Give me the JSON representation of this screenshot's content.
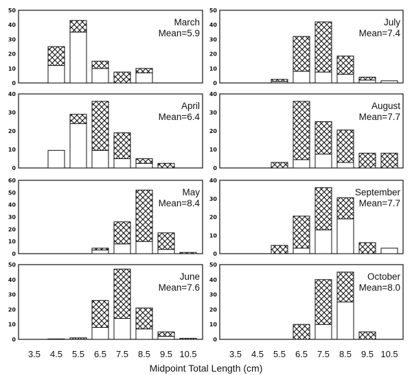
{
  "chart_data": {
    "type": "bar",
    "stacked": true,
    "xlabel": "Midpoint Total Length (cm)",
    "categories": [
      "3.5",
      "4.5",
      "5.5",
      "6.5",
      "7.5",
      "8.5",
      "9.5",
      "10.5"
    ],
    "series_styles": {
      "lower": "open",
      "upper": "cross-hatched"
    },
    "colors": {
      "outline": "#111111",
      "open": "#ffffff",
      "hatch": "#111111"
    },
    "panels": [
      {
        "month": "March",
        "mean": "Mean=5.9",
        "ylim": [
          0,
          50
        ],
        "yticks": [
          0,
          10,
          20,
          30,
          40,
          50
        ],
        "open": [
          0,
          12,
          35,
          10,
          0,
          7,
          0,
          0
        ],
        "hatched": [
          0,
          13,
          8,
          5,
          7.5,
          3,
          0,
          0
        ]
      },
      {
        "month": "April",
        "mean": "Mean=6.4",
        "ylim": [
          0,
          40
        ],
        "yticks": [
          0,
          10,
          20,
          30,
          40
        ],
        "open": [
          0,
          9.5,
          24,
          9.5,
          5,
          2.5,
          0,
          0
        ],
        "hatched": [
          0,
          0,
          5,
          26.5,
          14,
          2.5,
          2.5,
          0
        ]
      },
      {
        "month": "May",
        "mean": "Mean=8.4",
        "ylim": [
          0,
          60
        ],
        "yticks": [
          0,
          10,
          20,
          30,
          40,
          50,
          60
        ],
        "open": [
          0,
          0,
          0,
          3,
          8,
          10,
          3.5,
          0
        ],
        "hatched": [
          0,
          0,
          0,
          1.5,
          18,
          42,
          13.5,
          1
        ]
      },
      {
        "month": "June",
        "mean": "Mean=7.6",
        "ylim": [
          0,
          50
        ],
        "yticks": [
          0,
          10,
          20,
          30,
          40,
          50
        ],
        "open": [
          0,
          0,
          0,
          8,
          14,
          7,
          2,
          0
        ],
        "hatched": [
          0,
          0.3,
          1,
          18,
          33,
          14,
          3,
          0.7
        ]
      },
      {
        "month": "July",
        "mean": "Mean=7.4",
        "ylim": [
          0,
          50
        ],
        "yticks": [
          0,
          10,
          20,
          30,
          40,
          50
        ],
        "open": [
          0,
          0,
          1,
          8,
          7.5,
          6,
          2,
          1.5
        ],
        "hatched": [
          0,
          0,
          1.5,
          24,
          34.5,
          12.5,
          2,
          0
        ]
      },
      {
        "month": "August",
        "mean": "Mean=7.7",
        "ylim": [
          0,
          40
        ],
        "yticks": [
          0,
          10,
          20,
          30,
          40
        ],
        "open": [
          0,
          0,
          0,
          4.5,
          7.5,
          3,
          0,
          0
        ],
        "hatched": [
          0,
          0,
          3,
          31.5,
          17.5,
          17.5,
          8,
          8
        ]
      },
      {
        "month": "September",
        "mean": "Mean=7.7",
        "ylim": [
          0,
          40
        ],
        "yticks": [
          0,
          10,
          20,
          30,
          40
        ],
        "open": [
          0,
          0,
          0,
          3,
          13,
          19,
          0,
          3
        ],
        "hatched": [
          0,
          0,
          4.5,
          17.5,
          23,
          11.5,
          6,
          0
        ]
      },
      {
        "month": "October",
        "mean": "Mean=8.0",
        "ylim": [
          0,
          50
        ],
        "yticks": [
          0,
          10,
          20,
          30,
          40,
          50
        ],
        "open": [
          0,
          0,
          0,
          0,
          10,
          25,
          0,
          0
        ],
        "hatched": [
          0,
          0,
          0,
          10,
          30,
          20,
          5,
          0
        ]
      }
    ]
  }
}
